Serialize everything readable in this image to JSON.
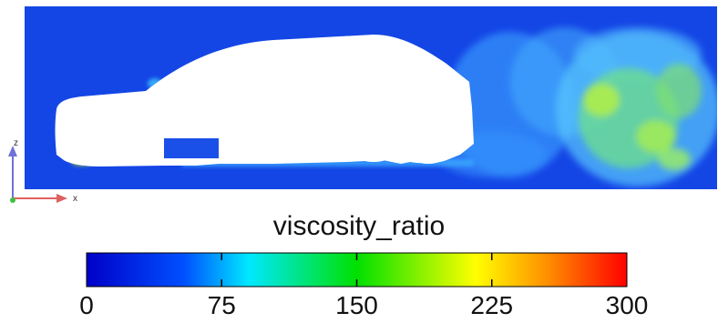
{
  "axes": {
    "z_label": "z",
    "x_label": "x"
  },
  "colorbar": {
    "title": "viscosity_ratio",
    "min": 0,
    "max": 300,
    "ticks": [
      "0",
      "75",
      "150",
      "225",
      "300"
    ],
    "colormap": [
      "#0000c8",
      "#0050ff",
      "#00e8ff",
      "#00e000",
      "#ffff00",
      "#ff8800",
      "#ff0000"
    ]
  },
  "colors": {
    "field_base": "#1446e6",
    "vehicle": "#ffffff"
  }
}
